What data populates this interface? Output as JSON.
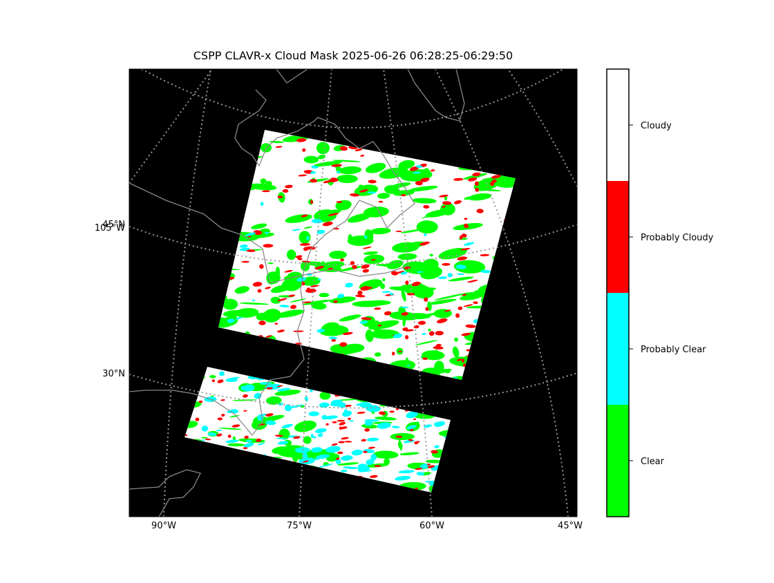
{
  "title": "CSPP CLAVR-x Cloud Mask 2025-06-26 06:28:25-06:29:50",
  "map": {
    "lon_labels": [
      "90°W",
      "75°W",
      "60°W",
      "45°W"
    ],
    "lat_labels": [
      "45°N",
      "105°W",
      "30°N"
    ]
  },
  "colorbar": {
    "classes": [
      {
        "label": "Cloudy",
        "color": "#ffffff"
      },
      {
        "label": "Probably Cloudy",
        "color": "#ff0000"
      },
      {
        "label": "Probably Clear",
        "color": "#00ffff"
      },
      {
        "label": "Clear",
        "color": "#00ff00"
      }
    ]
  }
}
